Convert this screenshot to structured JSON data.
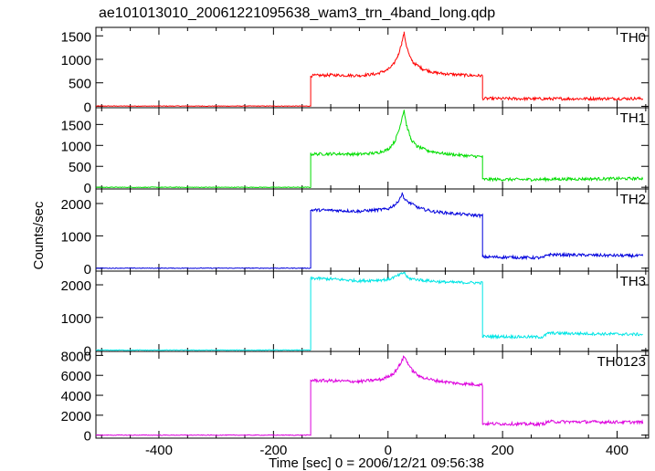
{
  "chart_data": {
    "type": "line",
    "title": "ae101013010_20061221095638_wam3_trn_4band_long.qdp",
    "xlabel": "Time [sec] 0 = 2006/12/21 09:56:38",
    "ylabel": "Counts/sec",
    "xlim": [
      -510,
      455
    ],
    "xticks": [
      -400,
      -200,
      0,
      200,
      400
    ],
    "panels": [
      {
        "name": "TH0",
        "color": "#ff0000",
        "ylim": [
          -30,
          1680
        ],
        "yticks": [
          0,
          500,
          1000,
          1500
        ],
        "points": [
          [
            -510,
            5
          ],
          [
            -135,
            5
          ],
          [
            -135,
            650
          ],
          [
            -100,
            665
          ],
          [
            -50,
            655
          ],
          [
            -20,
            690
          ],
          [
            0,
            780
          ],
          [
            10,
            900
          ],
          [
            18,
            1100
          ],
          [
            24,
            1350
          ],
          [
            28,
            1560
          ],
          [
            32,
            1300
          ],
          [
            38,
            1050
          ],
          [
            45,
            920
          ],
          [
            60,
            800
          ],
          [
            80,
            720
          ],
          [
            100,
            690
          ],
          [
            140,
            660
          ],
          [
            165,
            650
          ],
          [
            165,
            165
          ],
          [
            250,
            160
          ],
          [
            300,
            160
          ],
          [
            445,
            165
          ]
        ]
      },
      {
        "name": "TH1",
        "color": "#00dd00",
        "ylim": [
          -40,
          1900
        ],
        "yticks": [
          0,
          500,
          1000,
          1500
        ],
        "points": [
          [
            -510,
            0
          ],
          [
            -135,
            0
          ],
          [
            -135,
            790
          ],
          [
            -100,
            800
          ],
          [
            -50,
            790
          ],
          [
            -20,
            820
          ],
          [
            0,
            900
          ],
          [
            12,
            1100
          ],
          [
            20,
            1400
          ],
          [
            25,
            1700
          ],
          [
            28,
            1850
          ],
          [
            32,
            1500
          ],
          [
            40,
            1150
          ],
          [
            50,
            980
          ],
          [
            70,
            870
          ],
          [
            100,
            800
          ],
          [
            140,
            750
          ],
          [
            165,
            730
          ],
          [
            165,
            190
          ],
          [
            250,
            185
          ],
          [
            300,
            195
          ],
          [
            445,
            210
          ]
        ]
      },
      {
        "name": "TH2",
        "color": "#0000dd",
        "ylim": [
          -90,
          2450
        ],
        "yticks": [
          0,
          1000,
          2000
        ],
        "points": [
          [
            -510,
            0
          ],
          [
            -135,
            0
          ],
          [
            -135,
            1800
          ],
          [
            -100,
            1790
          ],
          [
            -50,
            1760
          ],
          [
            0,
            1830
          ],
          [
            15,
            2000
          ],
          [
            25,
            2300
          ],
          [
            30,
            2100
          ],
          [
            40,
            2000
          ],
          [
            55,
            1850
          ],
          [
            80,
            1750
          ],
          [
            120,
            1680
          ],
          [
            165,
            1620
          ],
          [
            165,
            350
          ],
          [
            270,
            320
          ],
          [
            280,
            420
          ],
          [
            445,
            380
          ]
        ]
      },
      {
        "name": "TH3",
        "color": "#00e5e5",
        "ylim": [
          -40,
          2420
        ],
        "yticks": [
          0,
          1000,
          2000
        ],
        "points": [
          [
            -510,
            0
          ],
          [
            -135,
            0
          ],
          [
            -135,
            2200
          ],
          [
            -100,
            2180
          ],
          [
            -50,
            2120
          ],
          [
            0,
            2160
          ],
          [
            20,
            2300
          ],
          [
            28,
            2380
          ],
          [
            35,
            2200
          ],
          [
            60,
            2140
          ],
          [
            100,
            2080
          ],
          [
            165,
            2060
          ],
          [
            165,
            420
          ],
          [
            270,
            400
          ],
          [
            280,
            520
          ],
          [
            445,
            480
          ]
        ]
      },
      {
        "name": "TH0123",
        "color": "#dd00dd",
        "ylim": [
          -300,
          8400
        ],
        "yticks": [
          0,
          2000,
          4000,
          6000,
          8000
        ],
        "points": [
          [
            -510,
            0
          ],
          [
            -135,
            0
          ],
          [
            -135,
            5500
          ],
          [
            -100,
            5450
          ],
          [
            -50,
            5380
          ],
          [
            -10,
            5600
          ],
          [
            10,
            6200
          ],
          [
            20,
            7000
          ],
          [
            28,
            7900
          ],
          [
            34,
            7300
          ],
          [
            42,
            6500
          ],
          [
            55,
            5900
          ],
          [
            80,
            5500
          ],
          [
            120,
            5200
          ],
          [
            165,
            5050
          ],
          [
            165,
            1150
          ],
          [
            270,
            1100
          ],
          [
            280,
            1350
          ],
          [
            445,
            1300
          ]
        ]
      }
    ]
  }
}
